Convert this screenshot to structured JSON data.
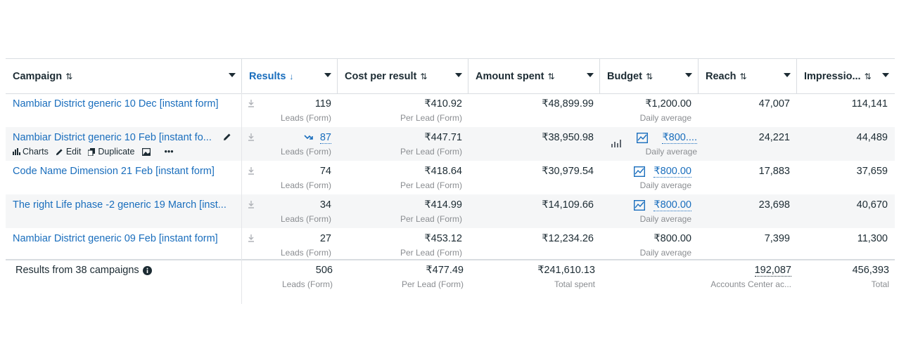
{
  "columns": [
    {
      "label": "Campaign",
      "sort": "⇅"
    },
    {
      "label": "Results",
      "sort": "↓"
    },
    {
      "label": "Cost per result",
      "sort": "⇅"
    },
    {
      "label": "Amount spent",
      "sort": "⇅"
    },
    {
      "label": "Budget",
      "sort": "⇅"
    },
    {
      "label": "Reach",
      "sort": "⇅"
    },
    {
      "label": "Impressio...",
      "sort": "⇅"
    }
  ],
  "rows": [
    {
      "campaign": "Nambiar District generic 10 Dec [instant form]",
      "results": "119",
      "results_sub": "Leads (Form)",
      "cpr": "₹410.92",
      "cpr_sub": "Per Lead (Form)",
      "spent": "₹48,899.99",
      "budget": "₹1,200.00",
      "budget_sub": "Daily average",
      "reach": "47,007",
      "impressions": "114,141"
    },
    {
      "campaign": "Nambiar District generic 10 Feb [instant fo...",
      "results": "87",
      "results_sub": "Leads (Form)",
      "cpr": "₹447.71",
      "cpr_sub": "Per Lead (Form)",
      "spent": "₹38,950.98",
      "budget": "₹800....",
      "budget_sub": "Daily average",
      "reach": "24,221",
      "impressions": "44,489"
    },
    {
      "campaign": "Code Name Dimension 21 Feb [instant form]",
      "results": "74",
      "results_sub": "Leads (Form)",
      "cpr": "₹418.64",
      "cpr_sub": "Per Lead (Form)",
      "spent": "₹30,979.54",
      "budget": "₹800.00",
      "budget_sub": "Daily average",
      "reach": "17,883",
      "impressions": "37,659"
    },
    {
      "campaign": "The right Life phase -2 generic 19 March [inst...",
      "results": "34",
      "results_sub": "Leads (Form)",
      "cpr": "₹414.99",
      "cpr_sub": "Per Lead (Form)",
      "spent": "₹14,109.66",
      "budget": "₹800.00",
      "budget_sub": "Daily average",
      "reach": "23,698",
      "impressions": "40,670"
    },
    {
      "campaign": "Nambiar District generic 09 Feb [instant form]",
      "results": "27",
      "results_sub": "Leads (Form)",
      "cpr": "₹453.12",
      "cpr_sub": "Per Lead (Form)",
      "spent": "₹12,234.26",
      "budget": "₹800.00",
      "budget_sub": "Daily average",
      "reach": "7,399",
      "impressions": "11,300"
    }
  ],
  "row_actions": {
    "charts": "Charts",
    "edit": "Edit",
    "duplicate": "Duplicate",
    "more": "•••"
  },
  "totals": {
    "label": "Results from 38 campaigns",
    "results": "506",
    "results_sub": "Leads (Form)",
    "cpr": "₹477.49",
    "cpr_sub": "Per Lead (Form)",
    "spent": "₹241,610.13",
    "spent_sub": "Total spent",
    "reach": "192,087",
    "reach_sub": "Accounts Center ac...",
    "impressions": "456,393",
    "impressions_sub": "Total"
  },
  "colors": {
    "link": "#1a6ebd",
    "text": "#1c2b33",
    "muted": "#8a8d91",
    "border": "#d9dde1"
  }
}
